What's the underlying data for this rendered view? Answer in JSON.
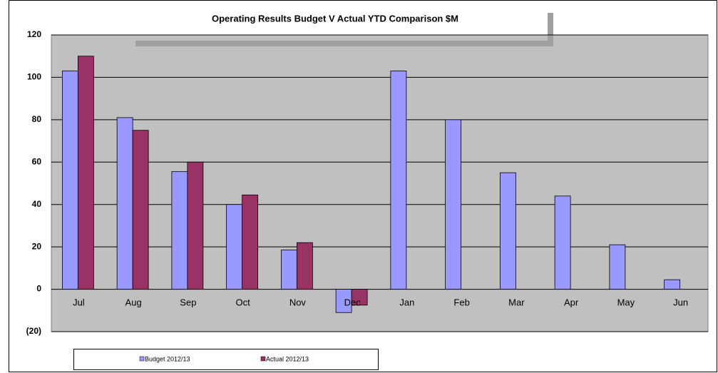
{
  "chart_data": {
    "type": "bar",
    "title": "Operating Results Budget V Actual YTD Comparison    $M",
    "categories": [
      "Jul",
      "Aug",
      "Sep",
      "Oct",
      "Nov",
      "Dec",
      "Jan",
      "Feb",
      "Mar",
      "Apr",
      "May",
      "Jun"
    ],
    "series": [
      {
        "name": "Budget 2012/13",
        "color": "#9999ff",
        "values": [
          103,
          81,
          55.5,
          40,
          18.5,
          -11,
          103,
          80,
          55,
          44,
          21,
          4.5
        ]
      },
      {
        "name": "Actual 2012/13",
        "color": "#993366",
        "values": [
          110,
          75,
          60,
          44.5,
          22,
          -7.5,
          null,
          null,
          null,
          null,
          null,
          null
        ]
      }
    ],
    "ylim": [
      -20,
      120
    ],
    "yticks": [
      {
        "value": -20,
        "label": "(20)"
      },
      0,
      20,
      40,
      60,
      80,
      100,
      120
    ],
    "grid": true
  }
}
